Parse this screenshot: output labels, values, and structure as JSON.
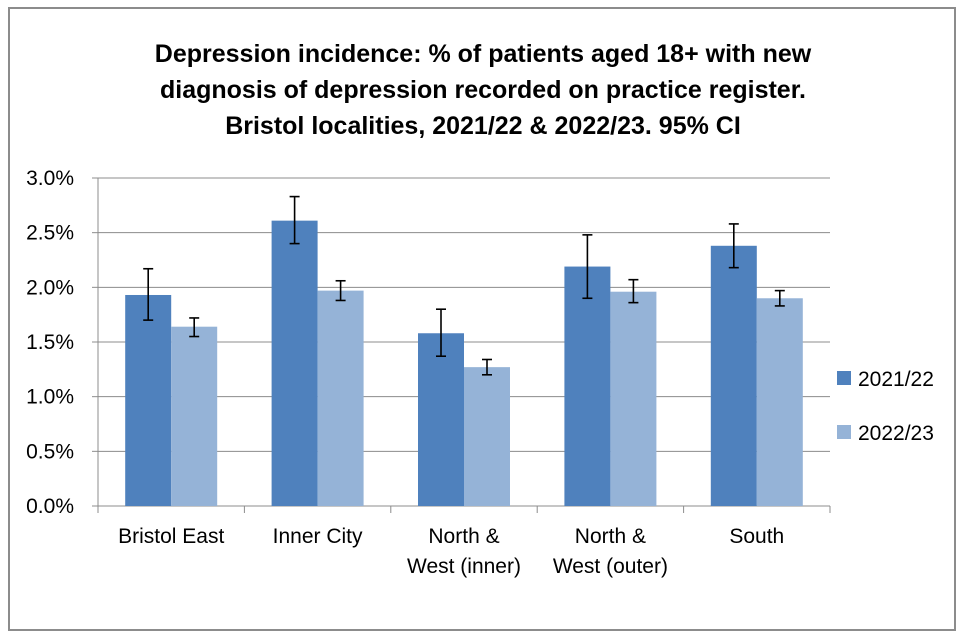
{
  "chart_data": {
    "type": "bar",
    "title_lines": [
      "Depression incidence: % of patients aged 18+ with new",
      "diagnosis of depression recorded on practice register.",
      "Bristol localities, 2021/22 & 2022/23. 95% CI"
    ],
    "categories": [
      [
        "Bristol East"
      ],
      [
        "Inner City"
      ],
      [
        "North &",
        "West (inner)"
      ],
      [
        "North &",
        "West (outer)"
      ],
      [
        "South"
      ]
    ],
    "series": [
      {
        "name": "2021/22",
        "color": "#4f81bd",
        "values": [
          1.93,
          2.61,
          1.58,
          2.19,
          2.38
        ],
        "ci_low": [
          1.7,
          2.4,
          1.37,
          1.9,
          2.18
        ],
        "ci_high": [
          2.17,
          2.83,
          1.8,
          2.48,
          2.58
        ]
      },
      {
        "name": "2022/23",
        "color": "#95b3d7",
        "values": [
          1.64,
          1.97,
          1.27,
          1.96,
          1.9
        ],
        "ci_low": [
          1.55,
          1.88,
          1.2,
          1.86,
          1.83
        ],
        "ci_high": [
          1.72,
          2.06,
          1.34,
          2.07,
          1.97
        ]
      }
    ],
    "ylim": [
      0,
      3.0
    ],
    "yticks": [
      "0.0%",
      "0.5%",
      "1.0%",
      "1.5%",
      "2.0%",
      "2.5%",
      "3.0%"
    ],
    "grid": true,
    "legend_position": "right"
  }
}
